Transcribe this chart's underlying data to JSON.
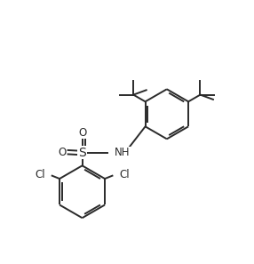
{
  "background_color": "#ffffff",
  "line_color": "#2a2a2a",
  "line_width": 1.4,
  "font_size": 8.5,
  "figsize": [
    2.86,
    2.97
  ],
  "dpi": 100,
  "xlim": [
    0,
    10
  ],
  "ylim": [
    0,
    10.4
  ]
}
